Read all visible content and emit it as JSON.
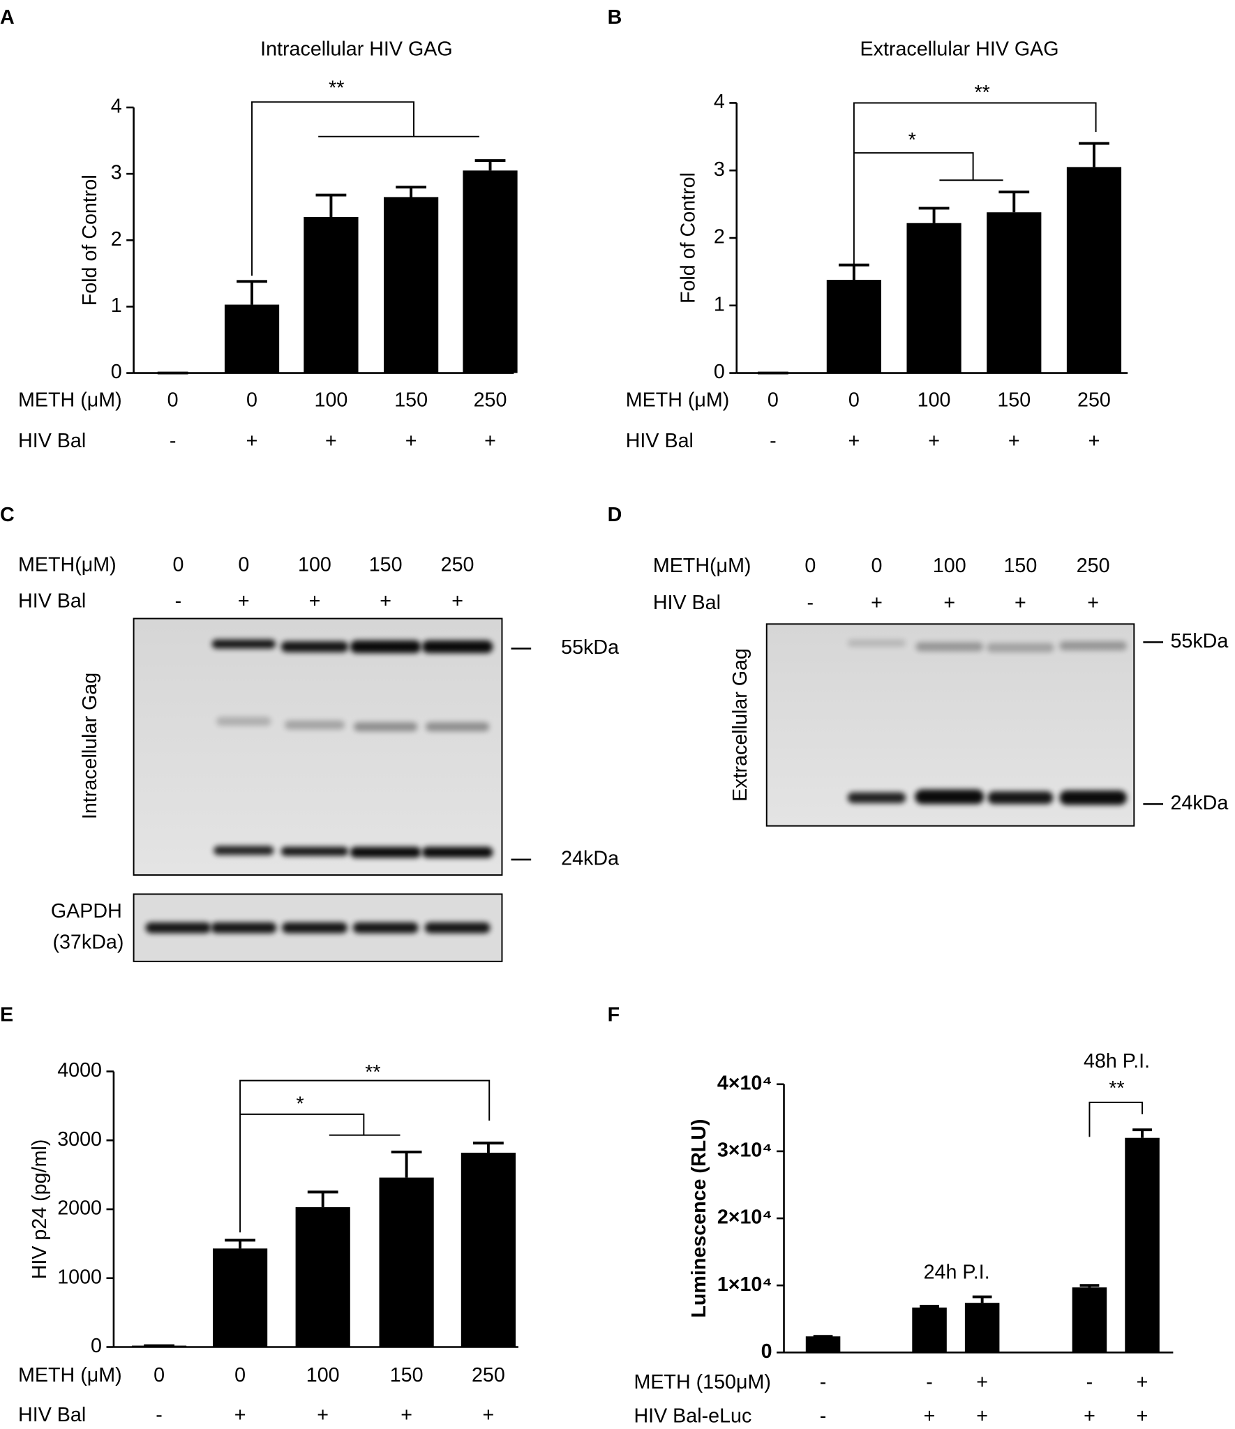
{
  "chart_data": [
    {
      "type": "bar",
      "label": "A",
      "title": "Intracellular HIV GAG",
      "y_label": "Fold of Control",
      "category_label": "METH (μM)",
      "categories": [
        "0",
        "0",
        "100",
        "150",
        "250"
      ],
      "category_label_2": "HIV Bal",
      "categories_2": [
        "-",
        "+",
        "+",
        "+",
        "+"
      ],
      "values": [
        0,
        1.03,
        2.35,
        2.65,
        3.05
      ],
      "errors": [
        0,
        0.35,
        0.33,
        0.15,
        0.15
      ],
      "color": "#000000",
      "ylim": [
        0,
        4
      ],
      "yticks": [
        0,
        1,
        2,
        3,
        4
      ],
      "annotations": [
        "**"
      ]
    },
    {
      "type": "bar",
      "label": "B",
      "title": "Extracellular HIV GAG",
      "y_label": "Fold of Control",
      "category_label": "METH (μM)",
      "categories": [
        "0",
        "0",
        "100",
        "150",
        "250"
      ],
      "category_label_2": "HIV Bal",
      "categories_2": [
        "-",
        "+",
        "+",
        "+",
        "+"
      ],
      "values": [
        0,
        1.38,
        2.22,
        2.38,
        3.05
      ],
      "errors": [
        0,
        0.22,
        0.22,
        0.3,
        0.35
      ],
      "color": "#000000",
      "ylim": [
        0,
        4
      ],
      "yticks": [
        0,
        1,
        2,
        3,
        4
      ],
      "annotations": [
        "*",
        "**"
      ]
    },
    {
      "type": "bar",
      "label": "E",
      "y_label": "HIV p24 (pg/ml)",
      "category_label": "METH (μM)",
      "categories": [
        "0",
        "0",
        "100",
        "150",
        "250"
      ],
      "category_label_2": "HIV Bal",
      "categories_2": [
        "-",
        "+",
        "+",
        "+",
        "+"
      ],
      "values": [
        20,
        1430,
        2030,
        2460,
        2820
      ],
      "errors": [
        0,
        120,
        220,
        370,
        140
      ],
      "color": "#000000",
      "ylim": [
        0,
        4000
      ],
      "yticks": [
        0,
        1000,
        2000,
        3000,
        4000
      ],
      "annotations": [
        "*",
        "**"
      ]
    },
    {
      "type": "bar",
      "label": "F",
      "y_label": "Luminescence (RLU)",
      "category_label": "METH (150μM)",
      "categories": [
        "-",
        "-",
        "+",
        "-",
        "+"
      ],
      "category_label_2": "HIV Bal-eLuc",
      "categories_2": [
        "-",
        "+",
        "+",
        "+",
        "+"
      ],
      "values": [
        2400,
        6700,
        7400,
        9700,
        32000
      ],
      "errors": [
        0,
        200,
        900,
        300,
        1200
      ],
      "color": "#000000",
      "ylim": [
        0,
        40000
      ],
      "yticks": [
        0,
        {
          "value": 10000,
          "label": "1×10⁴"
        },
        {
          "value": 20000,
          "label": "2×10⁴"
        },
        {
          "value": 30000,
          "label": "3×10⁴"
        },
        {
          "value": 40000,
          "label": "4×10⁴"
        }
      ],
      "annotations": [
        "24h P.I.",
        "48h P.I.",
        "**"
      ]
    }
  ],
  "blots": [
    {
      "label": "C",
      "row_label": "METH(μM)",
      "lanes": [
        "0",
        "0",
        "100",
        "150",
        "250"
      ],
      "row_label_2": "HIV Bal",
      "lanes_2": [
        "-",
        "+",
        "+",
        "+",
        "+"
      ],
      "y_label": "Intracellular Gag",
      "markers": [
        "55kDa",
        "24kDa"
      ],
      "loading_control": "GAPDH",
      "loading_control_size": "(37kDa)"
    },
    {
      "label": "D",
      "row_label": "METH(μM)",
      "lanes": [
        "0",
        "0",
        "100",
        "150",
        "250"
      ],
      "row_label_2": "HIV Bal",
      "lanes_2": [
        "-",
        "+",
        "+",
        "+",
        "+"
      ],
      "y_label": "Extracellular Gag",
      "markers": [
        "55kDa",
        "24kDa"
      ]
    }
  ]
}
